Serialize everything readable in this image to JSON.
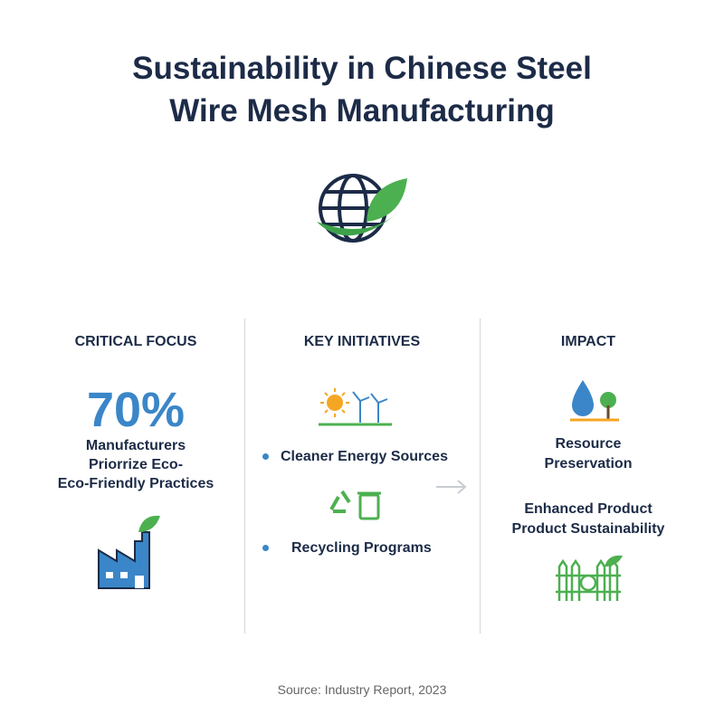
{
  "header": {
    "title_lines": [
      "Sustainability in Chinese Steel",
      "Wire Mesh Manufacturing"
    ]
  },
  "columns": [
    {
      "heading": "CRITICAL FOCUS",
      "stat": "70%",
      "lines": [
        "Manufacturers",
        "Priorrize Eco-",
        "Eco-Friendly Practices"
      ]
    },
    {
      "heading": "KEY INITIATIVES",
      "items": [
        "Cleaner Energy Sources",
        "Recycling Programs"
      ]
    },
    {
      "heading": "IMPACT",
      "items": [
        [
          "Resource",
          "Preservation"
        ],
        [
          "Enhanced Product",
          "Product Sustainability"
        ]
      ]
    }
  ],
  "footer": {
    "source": "Source: Industry Report, 2023"
  }
}
